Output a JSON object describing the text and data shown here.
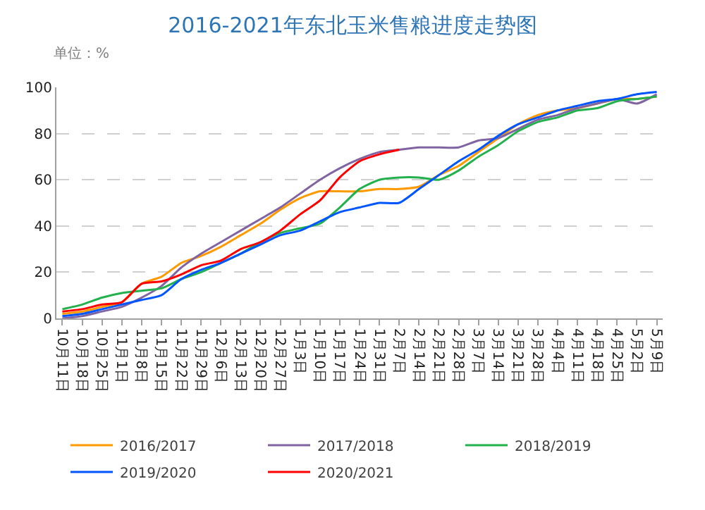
{
  "chart_data": {
    "type": "line",
    "title": "2016-2021年东北玉米售粮进度走势图",
    "ylabel": "单位：%",
    "categories": [
      "10月11日",
      "10月18日",
      "10月25日",
      "11月1日",
      "11月8日",
      "11月15日",
      "11月22日",
      "11月29日",
      "12月6日",
      "12月13日",
      "12月20日",
      "12月27日",
      "1月3日",
      "1月10日",
      "1月17日",
      "1月24日",
      "1月31日",
      "2月7日",
      "2月14日",
      "2月21日",
      "2月28日",
      "3月7日",
      "3月14日",
      "3月21日",
      "3月28日",
      "4月4日",
      "4月11日",
      "4月18日",
      "4月25日",
      "5月2日",
      "5月9日"
    ],
    "series": [
      {
        "name": "2016/2017",
        "color": "#ff9900",
        "values": [
          2,
          3,
          5,
          7,
          15,
          18,
          24,
          27,
          31,
          36,
          41,
          47,
          52,
          55,
          55,
          55,
          56,
          56,
          57,
          62,
          66,
          72,
          78,
          84,
          88,
          90,
          91,
          93,
          95,
          95,
          96
        ]
      },
      {
        "name": "2017/2018",
        "color": "#8064a2",
        "values": [
          0,
          1,
          3,
          5,
          9,
          14,
          22,
          28,
          33,
          38,
          43,
          48,
          54,
          60,
          65,
          69,
          72,
          73,
          74,
          74,
          74,
          77,
          78,
          82,
          86,
          88,
          91,
          93,
          95,
          93,
          97
        ]
      },
      {
        "name": "2018/2019",
        "color": "#22b14c",
        "values": [
          4,
          6,
          9,
          11,
          12,
          13,
          17,
          20,
          24,
          28,
          33,
          37,
          39,
          41,
          48,
          56,
          60,
          61,
          61,
          60,
          64,
          70,
          75,
          81,
          85,
          87,
          90,
          91,
          94,
          95,
          96
        ]
      },
      {
        "name": "2019/2020",
        "color": "#0055ff",
        "values": [
          1,
          2,
          4,
          6,
          8,
          10,
          17,
          21,
          24,
          28,
          32,
          36,
          38,
          42,
          46,
          48,
          50,
          50,
          56,
          62,
          68,
          73,
          79,
          84,
          87,
          90,
          92,
          94,
          95,
          97,
          98
        ]
      },
      {
        "name": "2020/2021",
        "color": "#ff0000",
        "values": [
          3,
          4,
          6,
          7,
          15,
          16,
          19,
          23,
          25,
          30,
          33,
          38,
          45,
          51,
          61,
          68,
          71,
          73,
          null,
          null,
          null,
          null,
          null,
          null,
          null,
          null,
          null,
          null,
          null,
          null,
          null
        ]
      }
    ],
    "ylim": [
      0,
      100
    ],
    "yticks": [
      0,
      20,
      40,
      60,
      80,
      100
    ],
    "grid": "y",
    "legend": "bottom",
    "marker": "none",
    "line_style": "solid"
  }
}
